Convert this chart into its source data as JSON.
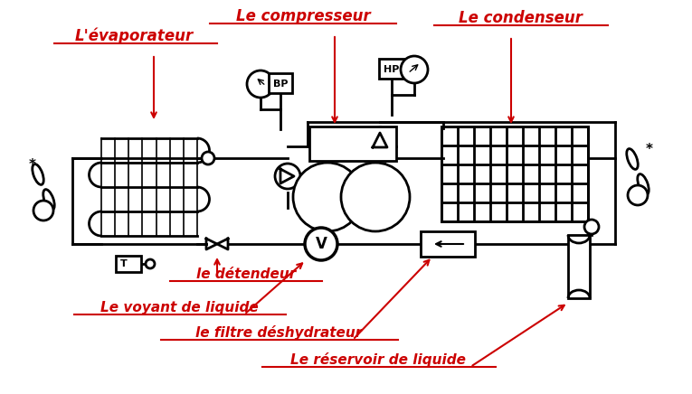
{
  "bg_color": "#ffffff",
  "line_color": "#000000",
  "label_color": "#cc0000",
  "labels": {
    "evaporateur": "L'évaporateur",
    "compresseur": "Le compresseur",
    "condenseur": "Le condenseur",
    "detendeur": "le détendeur",
    "voyant": "Le voyant de liquide",
    "filtre": "le filtre déshydrateur",
    "reservoir": "Le réservoir de liquide"
  },
  "figsize": [
    7.65,
    4.36
  ],
  "dpi": 100
}
